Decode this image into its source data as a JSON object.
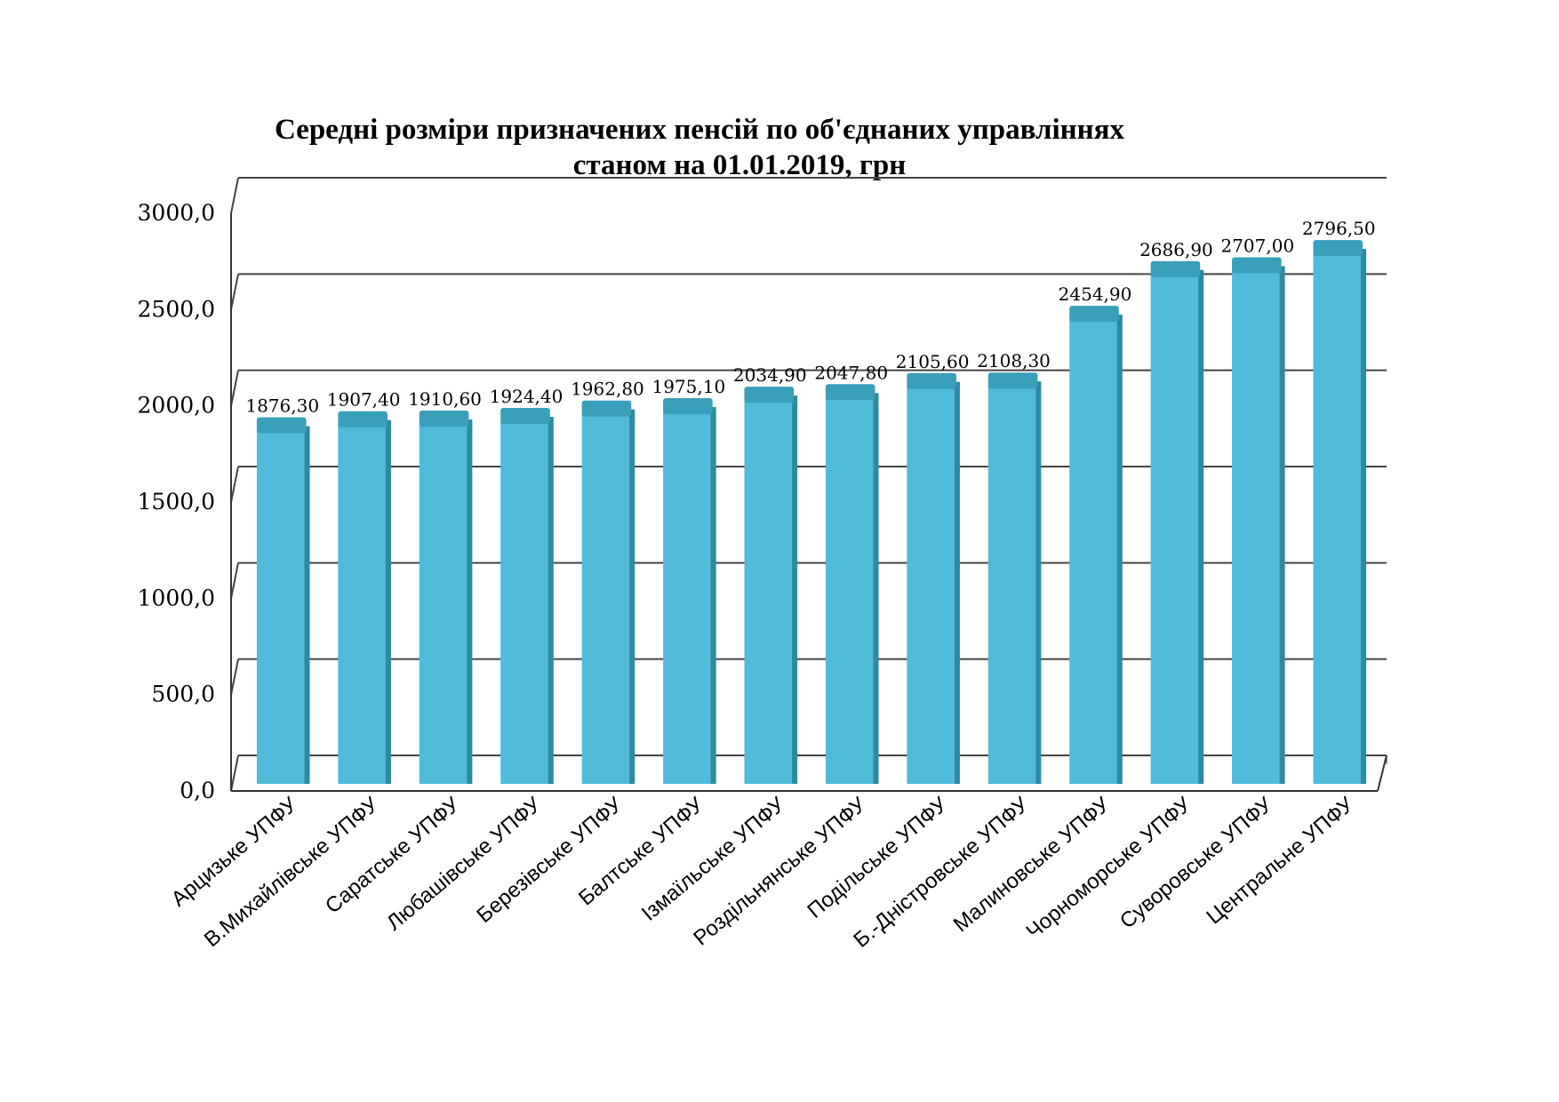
{
  "chart_data": {
    "type": "bar",
    "title": "Середні розміри призначених пенсій по об'єднаних управліннях",
    "subtitle": "станом на 01.01.2019,  грн",
    "categories": [
      "Арцизьке УПФУ",
      "В.Михайлівське УПФУ",
      "Саратське УПФУ",
      "Любашівське УПФУ",
      "Березівське УПФУ",
      "Балтське УПФУ",
      "Ізмаїльське УПФУ",
      "Роздільнянське УПФУ",
      "Подільське УПФУ",
      "Б.-Дністровське УПФУ",
      "Малиновське УПФУ",
      "Чорноморське УПФУ",
      "Суворовське УПФУ",
      "Центральне УПФУ"
    ],
    "values": [
      1876.3,
      1907.4,
      1910.6,
      1924.4,
      1962.8,
      1975.1,
      2034.9,
      2047.8,
      2105.6,
      2108.3,
      2454.9,
      2686.9,
      2707.0,
      2796.5
    ],
    "value_labels": [
      "1876,30",
      "1907,40",
      "1910,60",
      "1924,40",
      "1962,80",
      "1975,10",
      "2034,90",
      "2047,80",
      "2105,60",
      "2108,30",
      "2454,90",
      "2686,90",
      "2707,00",
      "2796,50"
    ],
    "y_ticks": [
      0,
      500,
      1000,
      1500,
      2000,
      2500,
      3000
    ],
    "y_tick_labels": [
      "0,0",
      "500,0",
      "1000,0",
      "1500,0",
      "2000,0",
      "2500,0",
      "3000,0"
    ],
    "ylim": [
      0,
      3000
    ],
    "grid": true,
    "legend": "none",
    "style": "3d-bar",
    "bar_color": "#4fbbd9",
    "bar_top_color": "#3a9fba",
    "bar_side_color": "#2e8aa3"
  }
}
